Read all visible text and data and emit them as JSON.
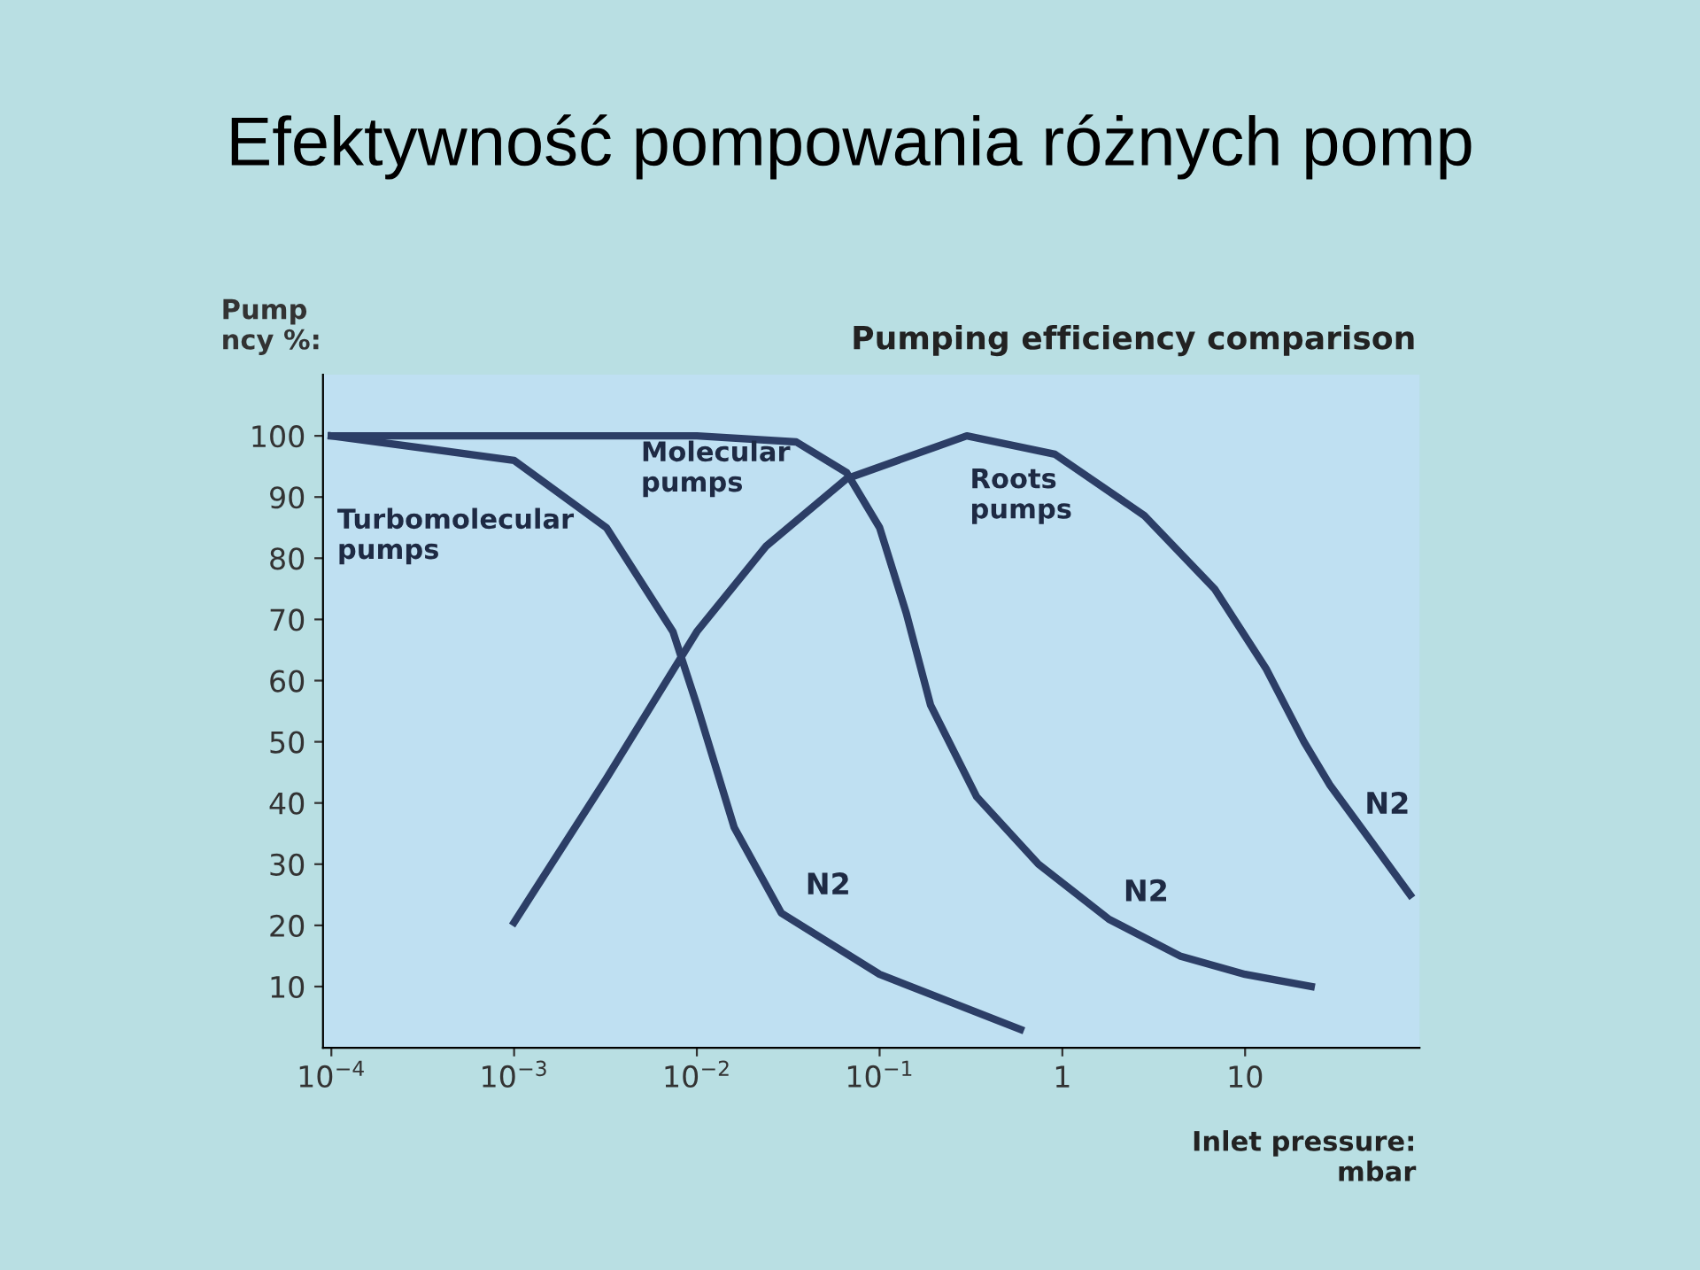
{
  "chart_data": {
    "type": "line",
    "title": "Pumping efficiency comparison",
    "subtitle": "Efektywność pompowania różnych pomp",
    "ylabel": "Pump\nncy %:",
    "xlabel": "Inlet pressure:\nmbar",
    "log": "x",
    "xlim": [
      9e-05,
      90
    ],
    "xticks": [
      {
        "value": 0.0001,
        "label": "10$^{−4}$"
      },
      {
        "value": 0.001,
        "label": "10$^{−3}$"
      },
      {
        "value": 0.01,
        "label": "10$^{−2}$"
      },
      {
        "value": 0.1,
        "label": "10$^{−1}$"
      },
      1,
      10
    ],
    "ylim": [
      0,
      110
    ],
    "yticks": [
      10,
      20,
      30,
      40,
      50,
      60,
      70,
      80,
      90,
      100
    ],
    "grid": false,
    "line_style": "solid",
    "series": [
      {
        "name": "Turbomolecular\npumps",
        "color": "#2c3e66",
        "x": [
          0.0001,
          0.001,
          0.0032,
          0.0074,
          0.01,
          0.016,
          0.029,
          0.1,
          0.59
        ],
        "values": [
          100,
          96,
          85,
          68,
          56,
          36,
          22,
          12,
          3
        ]
      },
      {
        "name": "Molecular\npumps",
        "color": "#2c3e66",
        "x": [
          0.0001,
          0.001,
          0.01,
          0.035,
          0.066,
          0.1,
          0.14,
          0.19,
          0.34,
          0.74,
          1.8,
          4.4,
          10,
          23
        ],
        "values": [
          100,
          100,
          100,
          99,
          94,
          85,
          71,
          56,
          41,
          30,
          21,
          15,
          12,
          10
        ]
      },
      {
        "name": "Roots\npumps",
        "color": "#2c3e66",
        "x": [
          0.001,
          0.0032,
          0.01,
          0.024,
          0.066,
          0.3,
          0.91,
          2.8,
          6.8,
          13,
          21,
          29,
          51,
          80
        ],
        "values": [
          20.5,
          44,
          68,
          82,
          93,
          100,
          97,
          87,
          75,
          62,
          50,
          43,
          33,
          25
        ]
      }
    ],
    "annotations": [
      "N2",
      "N2",
      "N2"
    ]
  }
}
